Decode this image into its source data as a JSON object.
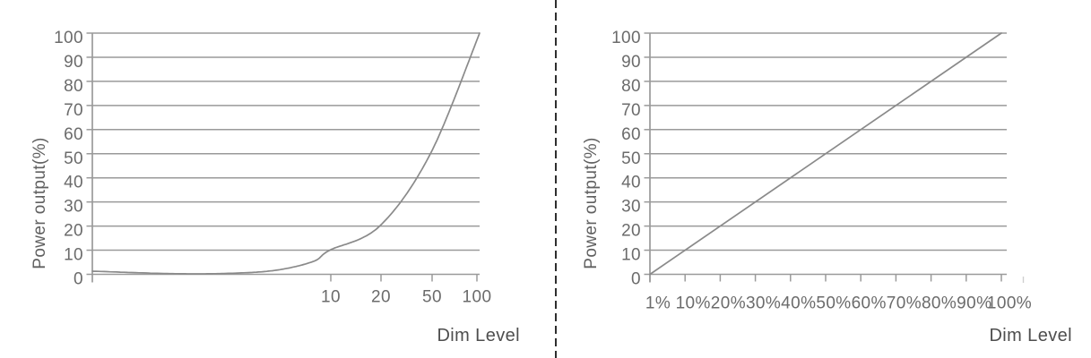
{
  "figure": {
    "background": "#ffffff",
    "divider": {
      "style": "dashed-vertical",
      "color": "#2e2e2e"
    }
  },
  "colors": {
    "grid": "#9a9a9a",
    "axis": "#9a9a9a",
    "curve": "#8a8a8a",
    "tick_text": "#6b6b6b",
    "axis_label_text": "#4e4e4e"
  },
  "chart_data": [
    {
      "type": "line",
      "name": "logarithmic-dimming-curve",
      "title": "",
      "xlabel": "Dim Level",
      "ylabel": "Power output(%)",
      "x_scale": "log-stylized",
      "x_ticks": [
        10,
        20,
        50,
        100
      ],
      "x_tick_labels": [
        "10",
        "20",
        "50",
        "100"
      ],
      "y_ticks": [
        0,
        10,
        20,
        30,
        40,
        50,
        60,
        70,
        80,
        90,
        100
      ],
      "ylim": [
        0,
        100
      ],
      "grid": "horizontal",
      "legend": "none",
      "series": [
        {
          "name": "power-output",
          "points": [
            [
              1,
              1
            ],
            [
              10,
              10
            ],
            [
              20,
              20
            ],
            [
              50,
              50
            ],
            [
              100,
              100
            ]
          ]
        }
      ]
    },
    {
      "type": "line",
      "name": "linear-dimming-curve",
      "title": "",
      "xlabel": "Dim Level",
      "ylabel": "Power output(%)",
      "x_scale": "linear",
      "x_ticks": [
        1,
        10,
        20,
        30,
        40,
        50,
        60,
        70,
        80,
        90,
        100
      ],
      "x_tick_labels": [
        "1%",
        "10%",
        "20%",
        "30%",
        "40%",
        "50%",
        "60%",
        "70%",
        "80%",
        "90%",
        "100%"
      ],
      "y_ticks": [
        0,
        10,
        20,
        30,
        40,
        50,
        60,
        70,
        80,
        90,
        100
      ],
      "ylim": [
        0,
        100
      ],
      "grid": "horizontal",
      "legend": "none",
      "series": [
        {
          "name": "power-output",
          "points": [
            [
              1,
              0
            ],
            [
              100,
              100
            ]
          ]
        }
      ]
    }
  ]
}
